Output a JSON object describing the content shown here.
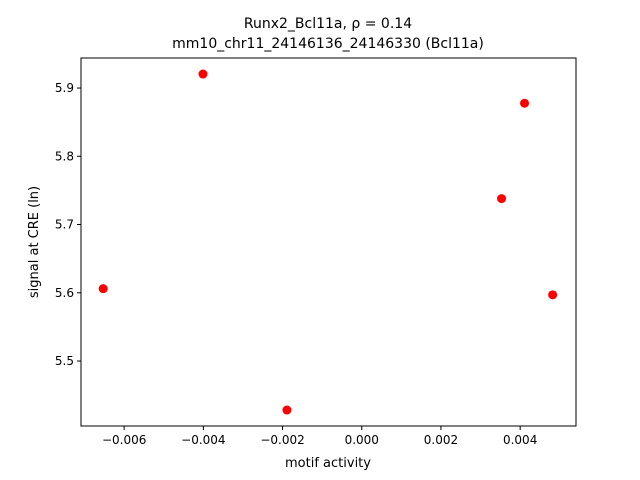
{
  "chart_data": {
    "type": "scatter",
    "title": "Runx2_Bcl11a, ρ = 0.14",
    "subtitle": "mm10_chr11_24146136_24146330 (Bcl11a)",
    "x_label": "motif activity",
    "y_label": "signal at CRE (ln)",
    "color": "#ff0000",
    "x": [
      -0.00653,
      -0.00401,
      -0.00189,
      0.00353,
      0.00411,
      0.00482
    ],
    "y": [
      5.606,
      5.9205,
      5.4282,
      5.738,
      5.8777,
      5.597
    ],
    "xlim": [
      -0.00709,
      0.00541
    ],
    "ylim": [
      5.4048,
      5.944
    ],
    "xticks": [
      {
        "value": -0.006,
        "label": "−0.006"
      },
      {
        "value": -0.004,
        "label": "−0.004"
      },
      {
        "value": -0.002,
        "label": "−0.002"
      },
      {
        "value": 0,
        "label": "0.000"
      },
      {
        "value": 0.002,
        "label": "0.002"
      },
      {
        "value": 0.004,
        "label": "0.004"
      }
    ],
    "yticks": [
      5.5,
      5.6,
      5.7,
      5.8,
      5.9
    ]
  }
}
